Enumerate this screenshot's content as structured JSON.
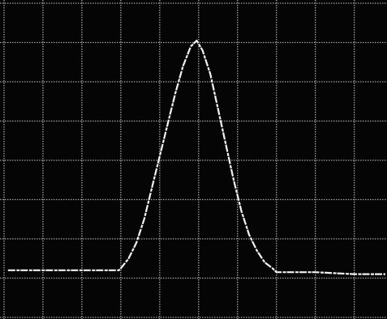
{
  "chart_data": {
    "type": "line",
    "x": [
      0.1,
      1.0,
      2.0,
      2.95,
      3.0,
      3.2,
      3.4,
      3.6,
      3.8,
      4.0,
      4.2,
      4.4,
      4.6,
      4.8,
      4.95,
      5.1,
      5.3,
      5.5,
      5.7,
      5.9,
      6.1,
      6.3,
      6.5,
      6.7,
      6.9,
      7.0,
      8.0,
      9.0,
      9.8
    ],
    "series": [
      {
        "color": "#f2f2f2",
        "values": [
          1.2,
          1.2,
          1.2,
          1.2,
          1.25,
          1.5,
          1.9,
          2.5,
          3.3,
          4.1,
          4.9,
          5.7,
          6.4,
          6.9,
          7.05,
          6.8,
          6.2,
          5.3,
          4.4,
          3.5,
          2.7,
          2.1,
          1.7,
          1.4,
          1.25,
          1.15,
          1.15,
          1.1,
          1.1
        ]
      }
    ],
    "xlim": [
      0,
      9.8
    ],
    "ylim": [
      0,
      8
    ],
    "xticks": [
      0,
      1,
      2,
      3,
      4,
      5,
      6,
      7,
      8,
      9
    ],
    "yticks": [
      0,
      1,
      2,
      3,
      4,
      5,
      6,
      7,
      8
    ],
    "grid": true
  }
}
